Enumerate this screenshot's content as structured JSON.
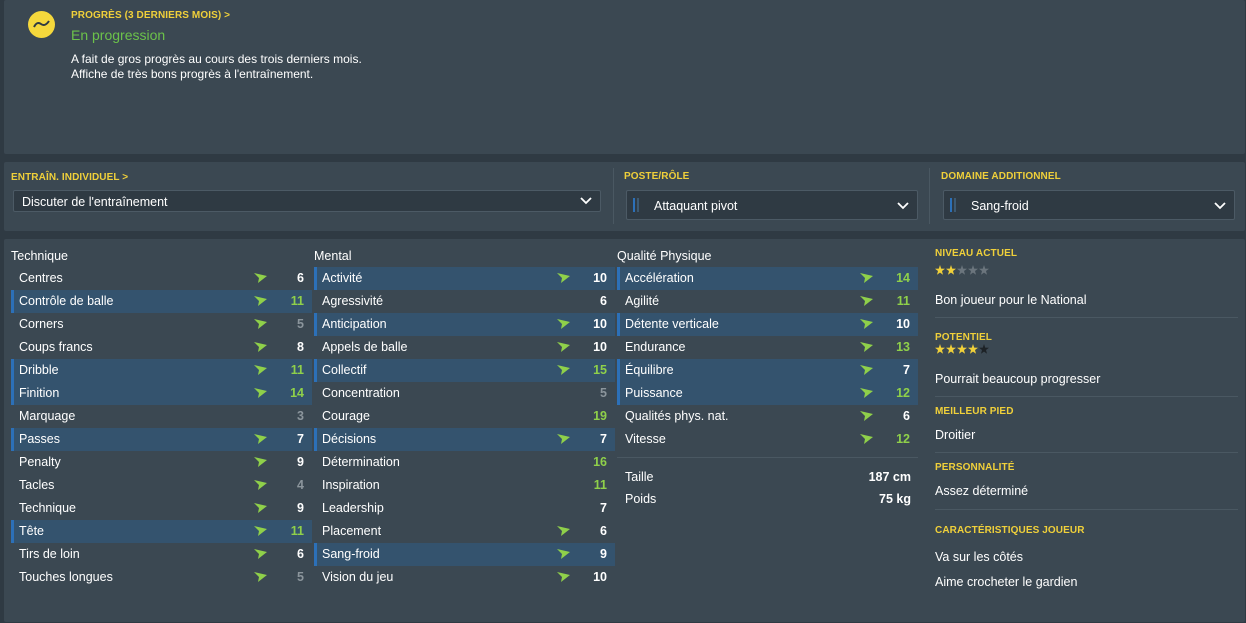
{
  "progress": {
    "label": "PROGRÈS (3 DERNIERS MOIS) >",
    "status": "En progression",
    "desc1": "A fait de gros progrès au cours des trois derniers mois.",
    "desc2": "Affiche de très bons progrès à l'entraînement.",
    "icon": "trend-icon"
  },
  "training": {
    "individual_label": "ENTRAÎN. INDIVIDUEL >",
    "individual_value": "Discuter de l'entraînement",
    "role_label": "POSTE/RÔLE",
    "role_value": "Attaquant pivot",
    "additional_label": "DOMAINE ADDITIONNEL",
    "additional_value": "Sang-froid"
  },
  "columns": {
    "technical": {
      "title": "Technique",
      "rows": [
        {
          "name": "Centres",
          "value": "6",
          "trend": true,
          "highlight": false,
          "color": "white"
        },
        {
          "name": "Contrôle de balle",
          "value": "11",
          "trend": true,
          "highlight": true,
          "color": "green"
        },
        {
          "name": "Corners",
          "value": "5",
          "trend": true,
          "highlight": false,
          "color": "grey"
        },
        {
          "name": "Coups francs",
          "value": "8",
          "trend": true,
          "highlight": false,
          "color": "white"
        },
        {
          "name": "Dribble",
          "value": "11",
          "trend": true,
          "highlight": true,
          "color": "green"
        },
        {
          "name": "Finition",
          "value": "14",
          "trend": true,
          "highlight": true,
          "color": "green"
        },
        {
          "name": "Marquage",
          "value": "3",
          "trend": false,
          "highlight": false,
          "color": "grey"
        },
        {
          "name": "Passes",
          "value": "7",
          "trend": true,
          "highlight": true,
          "color": "white"
        },
        {
          "name": "Penalty",
          "value": "9",
          "trend": true,
          "highlight": false,
          "color": "white"
        },
        {
          "name": "Tacles",
          "value": "4",
          "trend": true,
          "highlight": false,
          "color": "grey"
        },
        {
          "name": "Technique",
          "value": "9",
          "trend": true,
          "highlight": false,
          "color": "white"
        },
        {
          "name": "Tête",
          "value": "11",
          "trend": true,
          "highlight": true,
          "color": "green"
        },
        {
          "name": "Tirs de loin",
          "value": "6",
          "trend": true,
          "highlight": false,
          "color": "white"
        },
        {
          "name": "Touches longues",
          "value": "5",
          "trend": true,
          "highlight": false,
          "color": "grey"
        }
      ]
    },
    "mental": {
      "title": "Mental",
      "rows": [
        {
          "name": "Activité",
          "value": "10",
          "trend": true,
          "highlight": true,
          "color": "white"
        },
        {
          "name": "Agressivité",
          "value": "6",
          "trend": false,
          "highlight": false,
          "color": "white"
        },
        {
          "name": "Anticipation",
          "value": "10",
          "trend": true,
          "highlight": true,
          "color": "white"
        },
        {
          "name": "Appels de balle",
          "value": "10",
          "trend": true,
          "highlight": false,
          "color": "white"
        },
        {
          "name": "Collectif",
          "value": "15",
          "trend": true,
          "highlight": true,
          "color": "green"
        },
        {
          "name": "Concentration",
          "value": "5",
          "trend": false,
          "highlight": false,
          "color": "grey"
        },
        {
          "name": "Courage",
          "value": "19",
          "trend": false,
          "highlight": false,
          "color": "green"
        },
        {
          "name": "Décisions",
          "value": "7",
          "trend": true,
          "highlight": true,
          "color": "white"
        },
        {
          "name": "Détermination",
          "value": "16",
          "trend": false,
          "highlight": false,
          "color": "green"
        },
        {
          "name": "Inspiration",
          "value": "11",
          "trend": false,
          "highlight": false,
          "color": "green"
        },
        {
          "name": "Leadership",
          "value": "7",
          "trend": false,
          "highlight": false,
          "color": "white"
        },
        {
          "name": "Placement",
          "value": "6",
          "trend": true,
          "highlight": false,
          "color": "white"
        },
        {
          "name": "Sang-froid",
          "value": "9",
          "trend": true,
          "highlight": true,
          "color": "white"
        },
        {
          "name": "Vision du jeu",
          "value": "10",
          "trend": true,
          "highlight": false,
          "color": "white"
        }
      ]
    },
    "physical": {
      "title": "Qualité Physique",
      "rows": [
        {
          "name": "Accélération",
          "value": "14",
          "trend": true,
          "highlight": true,
          "color": "green"
        },
        {
          "name": "Agilité",
          "value": "11",
          "trend": true,
          "highlight": false,
          "color": "green"
        },
        {
          "name": "Détente verticale",
          "value": "10",
          "trend": true,
          "highlight": true,
          "color": "white"
        },
        {
          "name": "Endurance",
          "value": "13",
          "trend": true,
          "highlight": false,
          "color": "green"
        },
        {
          "name": "Équilibre",
          "value": "7",
          "trend": true,
          "highlight": true,
          "color": "white"
        },
        {
          "name": "Puissance",
          "value": "12",
          "trend": true,
          "highlight": true,
          "color": "green"
        },
        {
          "name": "Qualités phys. nat.",
          "value": "6",
          "trend": true,
          "highlight": false,
          "color": "white"
        },
        {
          "name": "Vitesse",
          "value": "12",
          "trend": true,
          "highlight": false,
          "color": "green"
        }
      ]
    }
  },
  "physical_info": {
    "height_label": "Taille",
    "height_value": "187 cm",
    "weight_label": "Poids",
    "weight_value": "75 kg"
  },
  "profile": {
    "current_label": "NIVEAU ACTUEL",
    "current_stars": 2,
    "current_text": "Bon joueur pour le National",
    "potential_label": "POTENTIEL",
    "potential_stars": 4,
    "potential_text": "Pourrait beaucoup progresser",
    "foot_label": "MEILLEUR PIED",
    "foot_value": "Droitier",
    "personality_label": "PERSONNALITÉ",
    "personality_value": "Assez déterminé",
    "traits_label": "CARACTÉRISTIQUES JOUEUR",
    "traits": [
      "Va sur les côtés",
      "Aime crocheter le gardien"
    ]
  },
  "colors": {
    "yellow": "#f0d03a",
    "green": "#8fd04a",
    "highlight_row": "#34536e",
    "panel": "#3b4852"
  }
}
